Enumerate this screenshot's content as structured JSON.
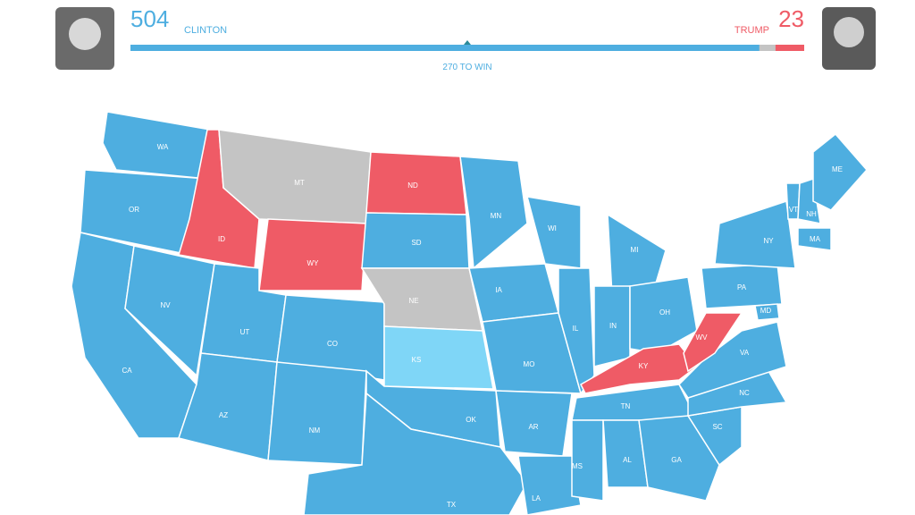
{
  "header": {
    "clinton": {
      "votes": 504,
      "name": "CLINTON",
      "color": "#4eaee0"
    },
    "trump": {
      "votes": 23,
      "name": "TRUMP",
      "color": "#ef5b66"
    },
    "threshold": 270,
    "threshold_label": "270 TO WIN"
  },
  "map": {
    "states": [
      {
        "label": "WA",
        "color": "#4eaee0"
      },
      {
        "label": "OR",
        "color": "#4eaee0"
      },
      {
        "label": "CA",
        "color": "#4eaee0"
      },
      {
        "label": "ID",
        "color": "#ef5b66"
      },
      {
        "label": "NV",
        "color": "#4eaee0"
      },
      {
        "label": "MT",
        "color": "#c4c4c4"
      },
      {
        "label": "WY",
        "color": "#ef5b66"
      },
      {
        "label": "UT",
        "color": "#4eaee0"
      },
      {
        "label": "AZ",
        "color": "#4eaee0"
      },
      {
        "label": "CO",
        "color": "#4eaee0"
      },
      {
        "label": "NM",
        "color": "#4eaee0"
      },
      {
        "label": "ND",
        "color": "#ef5b66"
      },
      {
        "label": "SD",
        "color": "#4eaee0"
      },
      {
        "label": "NE",
        "color": "#c4c4c4"
      },
      {
        "label": "KS",
        "color": "#7fd6f7"
      },
      {
        "label": "OK",
        "color": "#4eaee0"
      },
      {
        "label": "TX",
        "color": "#4eaee0"
      },
      {
        "label": "MN",
        "color": "#4eaee0"
      },
      {
        "label": "IA",
        "color": "#4eaee0"
      },
      {
        "label": "MO",
        "color": "#4eaee0"
      },
      {
        "label": "AR",
        "color": "#4eaee0"
      },
      {
        "label": "LA",
        "color": "#4eaee0"
      },
      {
        "label": "WI",
        "color": "#4eaee0"
      },
      {
        "label": "IL",
        "color": "#4eaee0"
      },
      {
        "label": "MI",
        "color": "#4eaee0"
      },
      {
        "label": "IN",
        "color": "#4eaee0"
      },
      {
        "label": "OH",
        "color": "#4eaee0"
      },
      {
        "label": "KY",
        "color": "#ef5b66"
      },
      {
        "label": "TN",
        "color": "#4eaee0"
      },
      {
        "label": "MS",
        "color": "#4eaee0"
      },
      {
        "label": "AL",
        "color": "#4eaee0"
      },
      {
        "label": "GA",
        "color": "#4eaee0"
      },
      {
        "label": "SC",
        "color": "#4eaee0"
      },
      {
        "label": "NC",
        "color": "#4eaee0"
      },
      {
        "label": "VA",
        "color": "#4eaee0"
      },
      {
        "label": "WV",
        "color": "#ef5b66"
      },
      {
        "label": "PA",
        "color": "#4eaee0"
      },
      {
        "label": "NY",
        "color": "#4eaee0"
      },
      {
        "label": "VT",
        "color": "#4eaee0"
      },
      {
        "label": "NH",
        "color": "#4eaee0"
      },
      {
        "label": "ME",
        "color": "#4eaee0"
      },
      {
        "label": "MA",
        "color": "#4eaee0"
      },
      {
        "label": "MD",
        "color": "#4eaee0"
      }
    ]
  }
}
